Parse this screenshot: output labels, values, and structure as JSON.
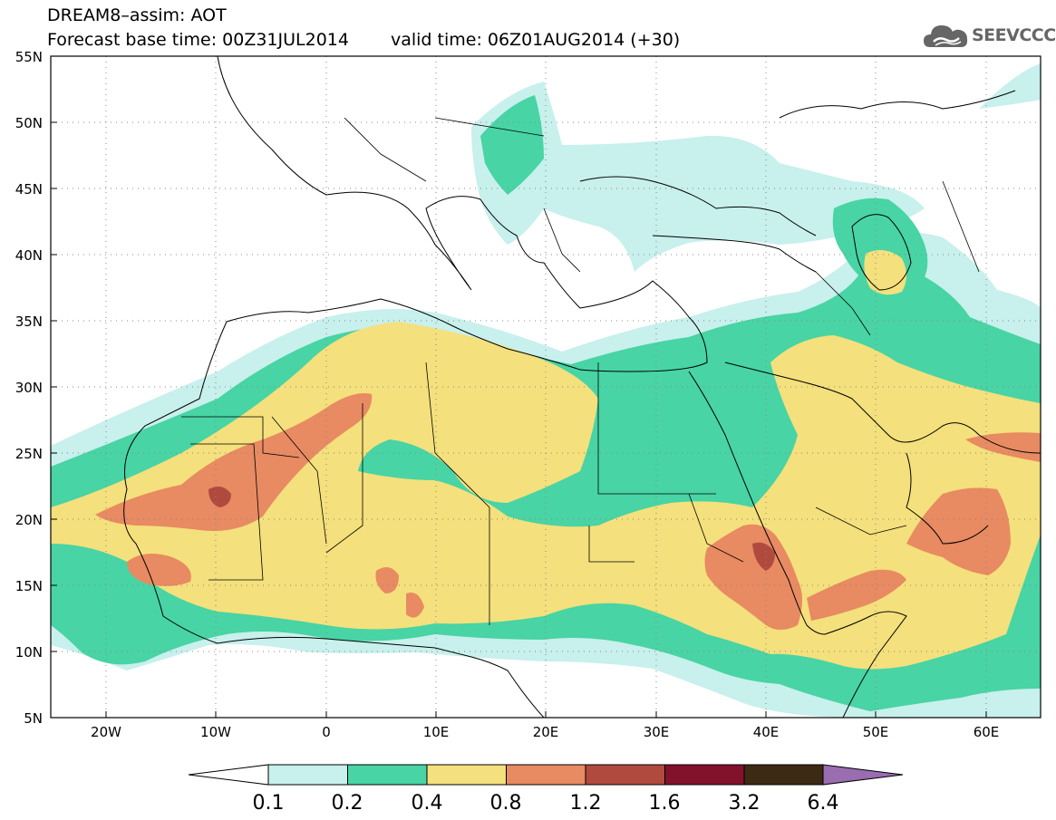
{
  "title": {
    "line1": "DREAM8–assim: AOT",
    "base_time": "Forecast base time: 00Z31JUL2014",
    "valid_time": "valid time: 06Z01AUG2014 (+30)"
  },
  "logo": {
    "text": "SEEVCCC",
    "icon": "cloud-icon"
  },
  "axes": {
    "lon_ticks": [
      "20W",
      "10W",
      "0",
      "10E",
      "20E",
      "30E",
      "40E",
      "50E",
      "60E"
    ],
    "lat_ticks": [
      "55N",
      "50N",
      "45N",
      "40N",
      "35N",
      "30N",
      "25N",
      "20N",
      "15N",
      "10N",
      "5N"
    ]
  },
  "colorbar": {
    "labels": [
      "0.1",
      "0.2",
      "0.4",
      "0.8",
      "1.2",
      "1.6",
      "3.2",
      "6.4"
    ],
    "colors": [
      "#c8f0ec",
      "#48d4a4",
      "#f4e07c",
      "#e88a62",
      "#b04a3e",
      "#82122c",
      "#3c2a14",
      "#9a6cb0"
    ],
    "under_color": "#ffffff"
  }
}
